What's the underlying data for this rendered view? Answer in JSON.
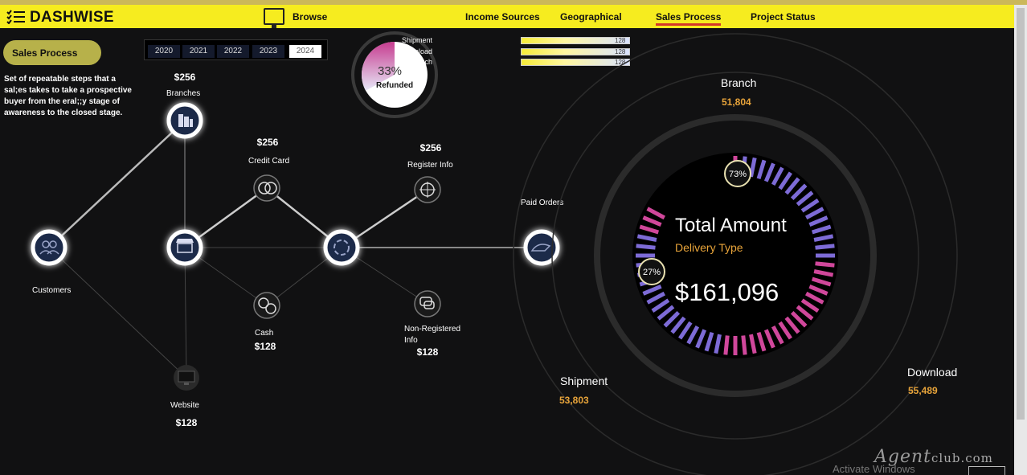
{
  "header": {
    "brand": "DASHWISE",
    "browse_label": "Browse",
    "nav": [
      "Income Sources",
      "Geographical",
      "Sales Process",
      "Project Status"
    ],
    "active_nav": "Sales Process"
  },
  "section_title": "Sales Process",
  "description": "Set of repeatable steps  that a sal;es takes to take a prospective buyer from the eral;;y stage of awareness to the closed stage.",
  "years": [
    "2020",
    "2021",
    "2022",
    "2023",
    "2024"
  ],
  "selected_year": "2024",
  "refund": {
    "pct": "33%",
    "label": "Refunded",
    "fraction": 0.33
  },
  "delivery_legend": [
    {
      "label": "Shipment",
      "value": "128"
    },
    {
      "label": "Download",
      "value": "128"
    },
    {
      "label": "Branch",
      "value": "128"
    }
  ],
  "flow": {
    "branches": {
      "label": "Branches",
      "amount": "$256"
    },
    "customers": {
      "label": "Customers"
    },
    "credit_card": {
      "label": "Credit Card",
      "amount": "$256"
    },
    "register_info": {
      "label": "Register Info",
      "amount": "$256"
    },
    "paid_orders": {
      "label": "Paid Orders"
    },
    "cash": {
      "label": "Cash",
      "amount": "$128"
    },
    "non_registered": {
      "label_line1": "Non-Registered",
      "label_line2": "Info",
      "amount": "$128"
    },
    "website": {
      "label": "Website",
      "amount": "$128"
    }
  },
  "delivery": {
    "title": "Total Amount",
    "subtitle": "Delivery Type",
    "total": "$161,096",
    "pct_a": "73%",
    "pct_b": "27%",
    "branch": {
      "label": "Branch",
      "value": "51,804"
    },
    "shipment": {
      "label": "Shipment",
      "value": "53,803"
    },
    "download": {
      "label": "Download",
      "value": "55,489"
    }
  },
  "system": {
    "activate_text": "Activate Windows",
    "watermark": "Agent",
    "watermark_suffix": "club.com"
  },
  "colors": {
    "accent": "#f6ec1f",
    "gold": "#e8a43a",
    "ring": "#7d6bd6",
    "ring_pink": "#d0479b"
  }
}
